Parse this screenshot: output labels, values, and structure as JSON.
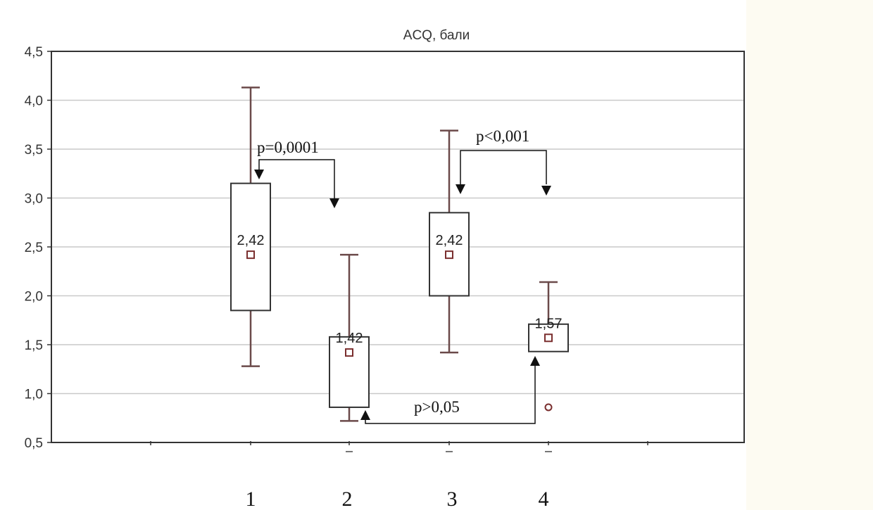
{
  "chart_data": {
    "type": "box",
    "title": "ACQ, бали",
    "ylim": [
      0.5,
      4.5
    ],
    "yticks": [
      "0,5",
      "1,0",
      "1,5",
      "2,0",
      "2,5",
      "3,0",
      "3,5",
      "4,0",
      "4,5"
    ],
    "grid": true,
    "groups": [
      {
        "label": "1",
        "min": 1.28,
        "q1": 1.85,
        "median": 2.42,
        "q3": 3.15,
        "max": 4.13,
        "median_label": "2,42",
        "outliers": []
      },
      {
        "label": "2",
        "min": 0.72,
        "q1": 0.86,
        "median": 1.42,
        "q3": 1.58,
        "max": 2.42,
        "median_label": "1,42",
        "outliers": []
      },
      {
        "label": "3",
        "min": 1.42,
        "q1": 2.0,
        "median": 2.42,
        "q3": 2.85,
        "max": 3.69,
        "median_label": "2,42",
        "outliers": []
      },
      {
        "label": "4",
        "min": 1.43,
        "q1": 1.43,
        "median": 1.57,
        "q3": 1.71,
        "max": 2.14,
        "median_label": "1,57",
        "outliers": [
          0.86
        ]
      }
    ],
    "annotations": [
      {
        "text": "p=0,0001"
      },
      {
        "text": "p<0,001"
      },
      {
        "text": "p>0,05"
      }
    ]
  }
}
